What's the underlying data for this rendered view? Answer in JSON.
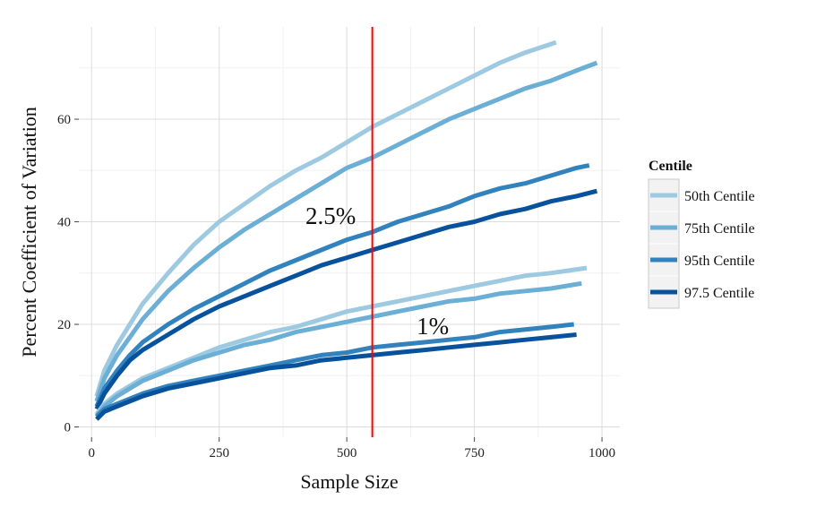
{
  "chart_data": {
    "type": "line",
    "title": "",
    "xlabel": "Sample Size",
    "ylabel": "Percent Coefficient of Variation",
    "xlim": [
      -25,
      1035
    ],
    "ylim": [
      -2,
      78
    ],
    "xticks": [
      0,
      250,
      500,
      750,
      1000
    ],
    "yticks": [
      0,
      20,
      40,
      60
    ],
    "grid": true,
    "vline": {
      "x": 550,
      "color": "#ff0000"
    },
    "legend": {
      "title": "Centile",
      "position": "right"
    },
    "annotations": [
      {
        "text": "2.5%",
        "x": 500,
        "y": 41
      },
      {
        "text": "1%",
        "x": 700,
        "y": 19.5
      }
    ],
    "series": [
      {
        "name": "50th Centile",
        "group": "2.5%",
        "color": "#9ecae1",
        "x": [
          10,
          25,
          50,
          75,
          100,
          150,
          200,
          250,
          300,
          350,
          400,
          450,
          500,
          550,
          600,
          650,
          700,
          750,
          800,
          850,
          910
        ],
        "y": [
          6,
          11,
          16,
          20,
          24,
          30,
          35.5,
          40,
          43.5,
          47,
          50,
          52.5,
          55.5,
          58.5,
          61,
          63.5,
          66,
          68.5,
          71,
          73,
          75
        ]
      },
      {
        "name": "75th Centile",
        "group": "2.5%",
        "color": "#6baed6",
        "x": [
          10,
          25,
          50,
          75,
          100,
          150,
          200,
          250,
          300,
          350,
          400,
          450,
          500,
          550,
          600,
          650,
          700,
          750,
          800,
          850,
          900,
          950,
          990
        ],
        "y": [
          5,
          9.5,
          14,
          17.5,
          21,
          26.5,
          31,
          35,
          38.5,
          41.5,
          44.5,
          47.5,
          50.5,
          52.5,
          55,
          57.5,
          60,
          62,
          64,
          66,
          67.5,
          69.5,
          71
        ]
      },
      {
        "name": "95th Centile",
        "group": "2.5%",
        "color": "#3182bd",
        "x": [
          10,
          25,
          50,
          75,
          100,
          150,
          200,
          250,
          300,
          350,
          400,
          450,
          500,
          550,
          600,
          650,
          700,
          750,
          800,
          850,
          900,
          950,
          975
        ],
        "y": [
          4,
          7.5,
          11,
          14,
          16.5,
          20,
          23,
          25.5,
          28,
          30.5,
          32.5,
          34.5,
          36.5,
          38,
          40,
          41.5,
          43,
          45,
          46.5,
          47.5,
          49,
          50.5,
          51
        ]
      },
      {
        "name": "97.5 Centile",
        "group": "2.5%",
        "color": "#08519c",
        "x": [
          10,
          25,
          50,
          75,
          100,
          150,
          200,
          250,
          300,
          350,
          400,
          450,
          500,
          550,
          600,
          650,
          700,
          750,
          800,
          850,
          900,
          950,
          990
        ],
        "y": [
          3.5,
          6.5,
          10,
          13,
          15,
          18,
          21,
          23.5,
          25.5,
          27.5,
          29.5,
          31.5,
          33,
          34.5,
          36,
          37.5,
          39,
          40,
          41.5,
          42.5,
          44,
          45,
          46
        ]
      },
      {
        "name": "50th Centile",
        "group": "1%",
        "color": "#9ecae1",
        "x": [
          10,
          25,
          50,
          100,
          150,
          200,
          250,
          300,
          350,
          400,
          450,
          500,
          550,
          600,
          650,
          700,
          750,
          800,
          850,
          900,
          970
        ],
        "y": [
          2.5,
          4.5,
          6.5,
          9.5,
          11.5,
          13.5,
          15.5,
          17,
          18.5,
          19.5,
          21,
          22.5,
          23.5,
          24.5,
          25.5,
          26.5,
          27.5,
          28.5,
          29.5,
          30,
          31
        ]
      },
      {
        "name": "75th Centile",
        "group": "1%",
        "color": "#6baed6",
        "x": [
          10,
          25,
          50,
          100,
          150,
          200,
          250,
          300,
          350,
          400,
          450,
          500,
          550,
          600,
          650,
          700,
          750,
          800,
          850,
          900,
          960
        ],
        "y": [
          2.2,
          4,
          6,
          9,
          11,
          13,
          14.5,
          16,
          17,
          18.5,
          19.5,
          20.5,
          21.5,
          22.5,
          23.5,
          24.5,
          25,
          26,
          26.5,
          27,
          28
        ]
      },
      {
        "name": "95th Centile",
        "group": "1%",
        "color": "#3182bd",
        "x": [
          10,
          25,
          50,
          100,
          150,
          200,
          250,
          300,
          350,
          400,
          450,
          500,
          550,
          600,
          650,
          700,
          750,
          800,
          850,
          900,
          945
        ],
        "y": [
          2,
          3.5,
          4.5,
          6.5,
          8,
          9,
          10,
          11,
          12,
          13,
          14,
          14.5,
          15.5,
          16,
          16.5,
          17,
          17.5,
          18.5,
          19,
          19.5,
          20
        ]
      },
      {
        "name": "97.5 Centile",
        "group": "1%",
        "color": "#08519c",
        "x": [
          10,
          25,
          50,
          100,
          150,
          200,
          250,
          300,
          350,
          400,
          450,
          500,
          550,
          600,
          650,
          700,
          750,
          800,
          850,
          900,
          950
        ],
        "y": [
          1.5,
          3,
          4,
          6,
          7.5,
          8.5,
          9.5,
          10.5,
          11.5,
          12,
          13,
          13.5,
          14,
          14.5,
          15,
          15.5,
          16,
          16.5,
          17,
          17.5,
          18
        ]
      }
    ]
  }
}
